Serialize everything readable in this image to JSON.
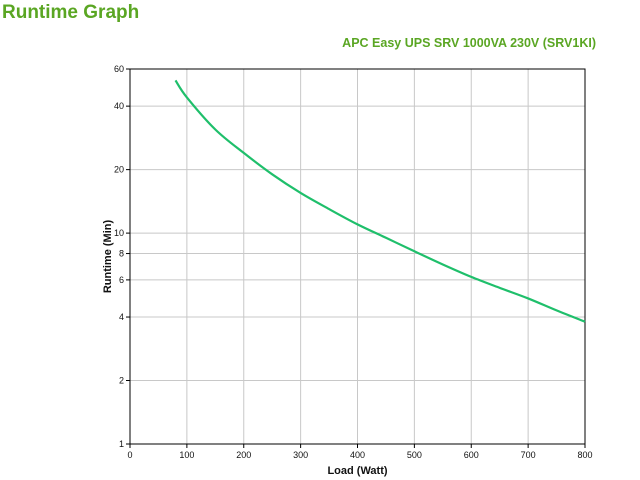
{
  "page": {
    "title": "Runtime Graph"
  },
  "colors": {
    "title": "#5aa623",
    "curve": "#1fbf6b",
    "grid": "#c8c8c8",
    "axis": "#000000"
  },
  "chart_data": {
    "type": "line",
    "title": "APC Easy UPS SRV 1000VA 230V (SRV1KI)",
    "xlabel": "Load (Watt)",
    "ylabel": "Runtime (Min)",
    "xlim": [
      0,
      800
    ],
    "ylim": [
      1,
      60
    ],
    "yscale": "log",
    "grid": true,
    "x_ticks": [
      0,
      100,
      200,
      300,
      400,
      500,
      600,
      700,
      800
    ],
    "y_ticks": [
      1,
      2,
      4,
      6,
      8,
      10,
      20,
      40,
      60
    ],
    "series": [
      {
        "x": [
          80,
          100,
          150,
          200,
          250,
          300,
          350,
          400,
          450,
          500,
          550,
          600,
          650,
          700,
          750,
          800
        ],
        "y": [
          53,
          44,
          31,
          24,
          19,
          15.5,
          13,
          11,
          9.5,
          8.2,
          7.1,
          6.2,
          5.5,
          4.9,
          4.3,
          3.8
        ]
      }
    ]
  }
}
